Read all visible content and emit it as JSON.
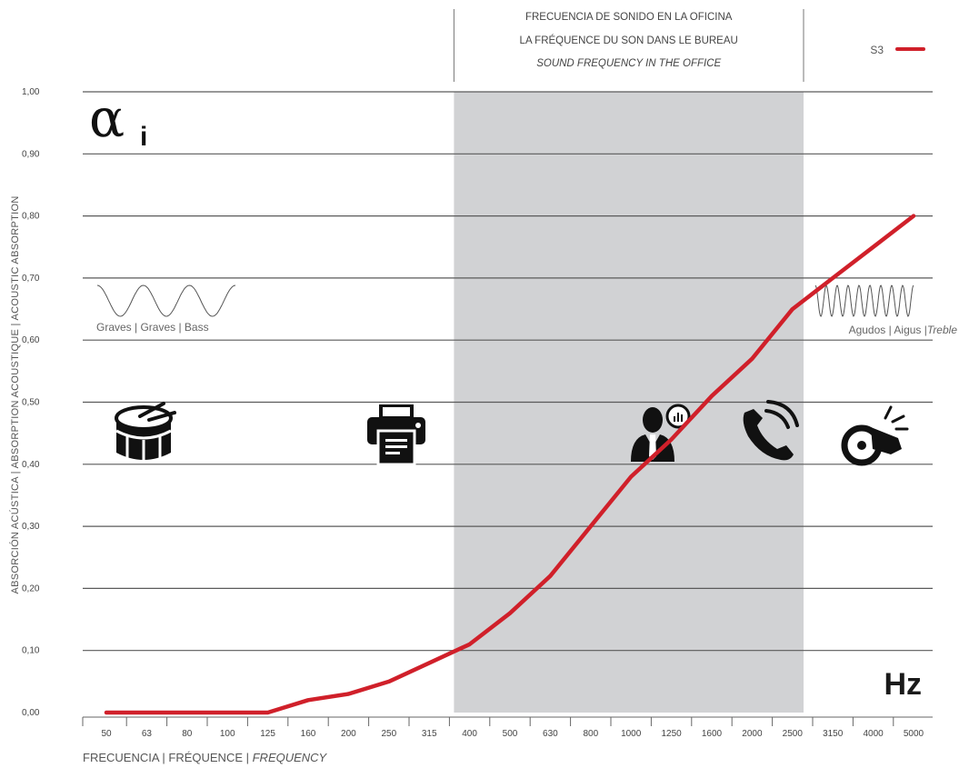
{
  "chart_data": {
    "type": "line",
    "title": "",
    "categories": [
      "50",
      "63",
      "80",
      "100",
      "125",
      "160",
      "200",
      "250",
      "315",
      "400",
      "500",
      "630",
      "800",
      "1000",
      "1250",
      "1600",
      "2000",
      "2500",
      "3150",
      "4000",
      "5000"
    ],
    "series": [
      {
        "name": "S3",
        "color": "#d0202a",
        "values": [
          0.0,
          0.0,
          0.0,
          0.0,
          0.0,
          0.02,
          0.03,
          0.05,
          0.08,
          0.11,
          0.16,
          0.22,
          0.3,
          0.38,
          0.44,
          0.51,
          0.57,
          0.65,
          0.7,
          0.75,
          0.8
        ]
      }
    ],
    "ylim": [
      0,
      1
    ],
    "yticks": [
      "0,00",
      "0,10",
      "0,20",
      "0,30",
      "0,40",
      "0,50",
      "0,60",
      "0,70",
      "0,80",
      "0,90",
      "1,00"
    ],
    "ylabel": "ABSORCIÓN ACÚSTICA | ABSORPTION ACOUSTIQUE | ACOUSTIC ABSORPTION",
    "xlabel_parts": [
      "FRECUENCIA | FRÉQUENCE | ",
      "FREQUENCY"
    ],
    "x_unit": "Hz",
    "y_symbol": "α",
    "y_symbol_sub": "i",
    "grid": true,
    "legend_position": "top-right",
    "band": {
      "from": "400",
      "to": "2500",
      "color": "#d1d2d4",
      "title_lines": [
        "FRECUENCIA DE SONIDO EN LA OFICINA",
        "LA FRÉQUENCE DU SON DANS LE BUREAU",
        "SOUND FREQUENCY IN THE OFFICE"
      ]
    },
    "low_range_label": "Graves | Graves | Bass",
    "high_range_label_parts": [
      "Agudos | Aigus |",
      "Treble"
    ],
    "icons": [
      "drum-icon",
      "printer-icon",
      "person-speaking-icon",
      "phone-icon",
      "whistle-icon"
    ]
  }
}
